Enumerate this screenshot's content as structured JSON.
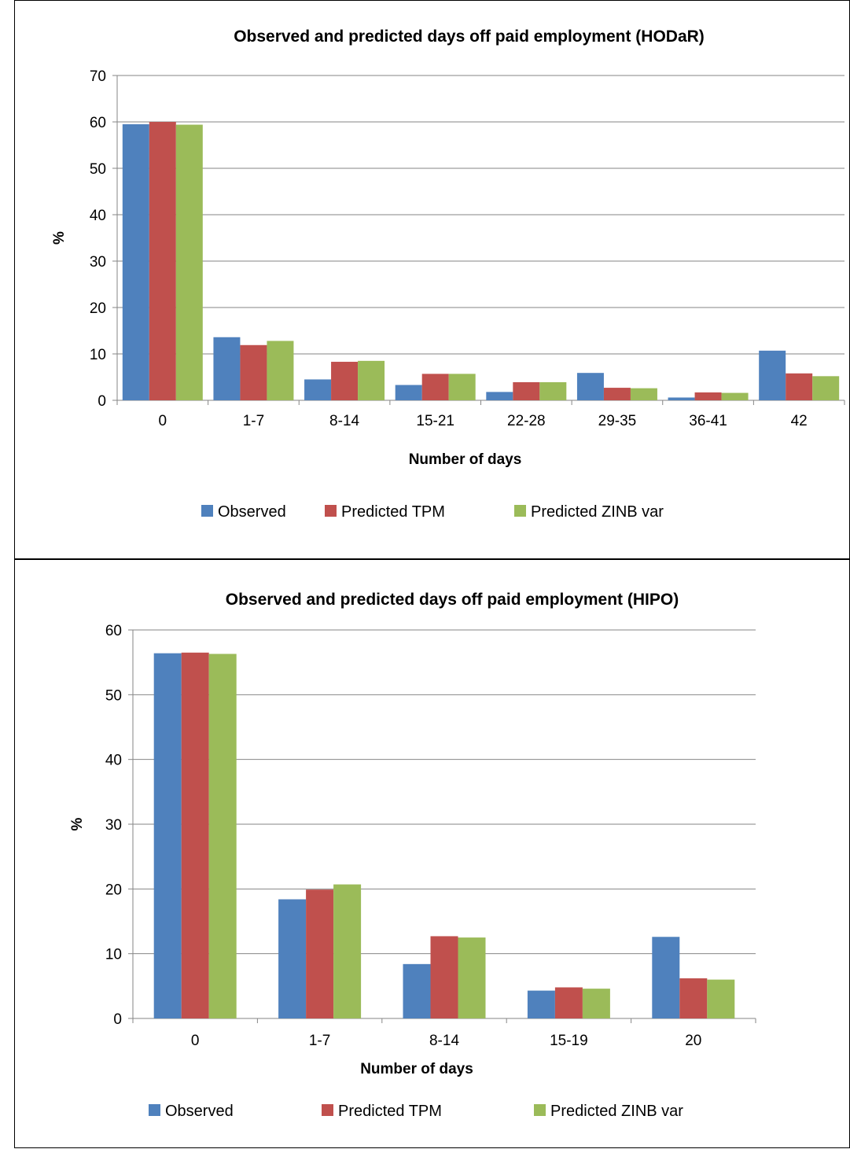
{
  "chart_data": [
    {
      "type": "bar",
      "title": "Observed and predicted days off paid employment (HODaR)",
      "xlabel": "Number of days",
      "ylabel": "%",
      "ylim": [
        0,
        70
      ],
      "yticks": [
        0,
        10,
        20,
        30,
        40,
        50,
        60,
        70
      ],
      "categories": [
        "0",
        "1-7",
        "8-14",
        "15-21",
        "22-28",
        "29-35",
        "36-41",
        "42"
      ],
      "series": [
        {
          "name": "Observed",
          "color": "#4f81bd",
          "values": [
            59.5,
            13.6,
            4.5,
            3.3,
            1.8,
            5.9,
            0.6,
            10.7
          ]
        },
        {
          "name": "Predicted TPM",
          "color": "#c0504d",
          "values": [
            60.0,
            11.9,
            8.3,
            5.7,
            3.9,
            2.7,
            1.7,
            5.8
          ]
        },
        {
          "name": "Predicted ZINB var",
          "color": "#9bbb59",
          "values": [
            59.4,
            12.8,
            8.5,
            5.7,
            3.9,
            2.6,
            1.6,
            5.2
          ]
        }
      ],
      "grid": true,
      "legend": "bottom"
    },
    {
      "type": "bar",
      "title": "Observed and predicted days off paid employment (HIPO)",
      "xlabel": "Number of days",
      "ylabel": "%",
      "ylim": [
        0,
        60
      ],
      "yticks": [
        0,
        10,
        20,
        30,
        40,
        50,
        60
      ],
      "categories": [
        "0",
        "1-7",
        "8-14",
        "15-19",
        "20"
      ],
      "series": [
        {
          "name": "Observed",
          "color": "#4f81bd",
          "values": [
            56.4,
            18.4,
            8.4,
            4.3,
            12.6
          ]
        },
        {
          "name": "Predicted TPM",
          "color": "#c0504d",
          "values": [
            56.5,
            19.9,
            12.7,
            4.8,
            6.2
          ]
        },
        {
          "name": "Predicted ZINB var",
          "color": "#9bbb59",
          "values": [
            56.3,
            20.7,
            12.5,
            4.6,
            6.0
          ]
        }
      ],
      "grid": true,
      "legend": "bottom"
    }
  ]
}
